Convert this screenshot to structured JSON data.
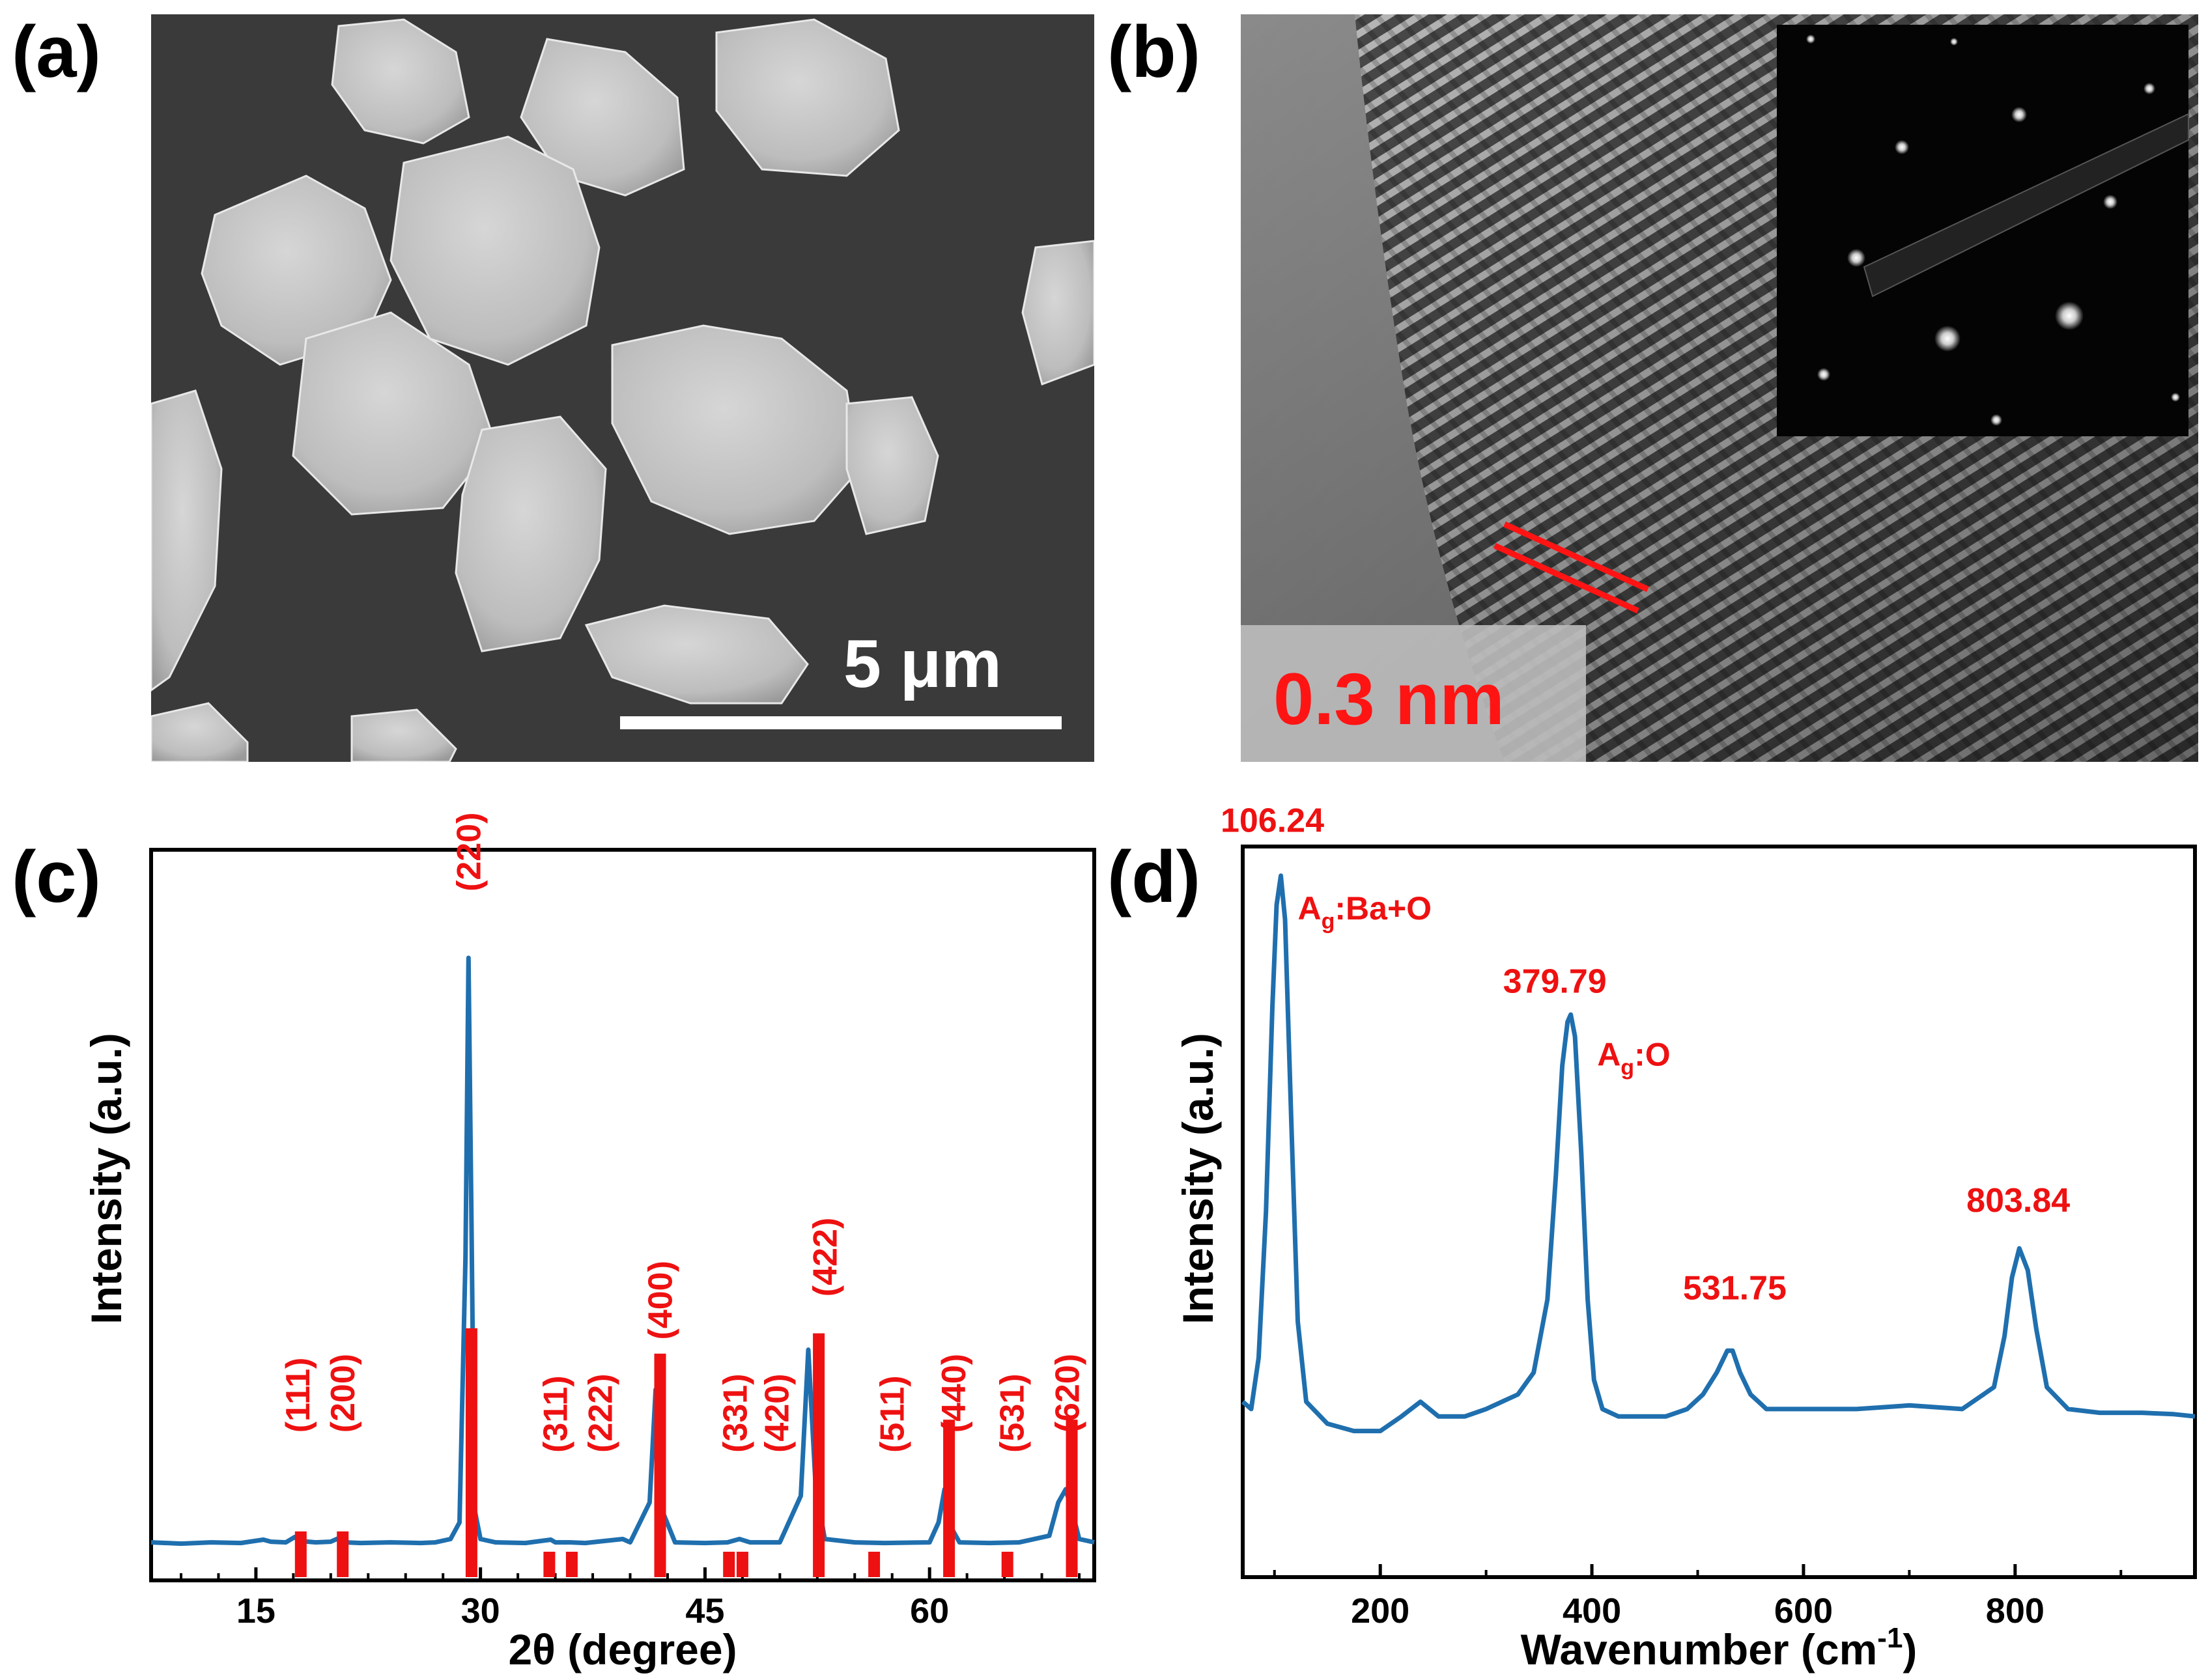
{
  "figure": {
    "panels": [
      {
        "id": "a",
        "label": "(a)",
        "scale_bar_text": "5 μm"
      },
      {
        "id": "b",
        "label": "(b)",
        "scale_bar_text": "0.3 nm"
      },
      {
        "id": "c",
        "label": "(c)"
      },
      {
        "id": "d",
        "label": "(d)"
      }
    ]
  },
  "chart_data": [
    {
      "panel": "c",
      "type": "line",
      "xlabel": "2θ (degree)",
      "ylabel": "Intensity (a.u.)",
      "xlim": [
        8,
        71
      ],
      "xticks": [
        15,
        30,
        45,
        60
      ],
      "ylim": [
        0,
        1.25
      ],
      "yticks_shown": false,
      "line_color": "#1f6fae",
      "reference_color": "#ee1111",
      "series": [
        {
          "values_note": "",
          "x": [
            8,
            10,
            12,
            14,
            15.5,
            16,
            17,
            17.6,
            18,
            19,
            20,
            20.5,
            21,
            22,
            24,
            26,
            27,
            28,
            28.6,
            29.0,
            29.2,
            29.4,
            29.6,
            30.0,
            31,
            33,
            34.7,
            35,
            36,
            37,
            39.5,
            40,
            41.3,
            41.7,
            42.1,
            43,
            45,
            46.5,
            47.3,
            48,
            50,
            51.4,
            51.9,
            52.4,
            53,
            55,
            57,
            60,
            60.6,
            61,
            61.5,
            62,
            64,
            66,
            68,
            68.6,
            69.1,
            69.6,
            70,
            71
          ],
          "y": [
            0.07,
            0.068,
            0.07,
            0.069,
            0.074,
            0.071,
            0.07,
            0.078,
            0.072,
            0.07,
            0.071,
            0.076,
            0.07,
            0.069,
            0.07,
            0.069,
            0.07,
            0.075,
            0.1,
            0.5,
            0.95,
            0.55,
            0.12,
            0.075,
            0.07,
            0.069,
            0.074,
            0.07,
            0.07,
            0.069,
            0.075,
            0.07,
            0.13,
            0.3,
            0.12,
            0.07,
            0.069,
            0.07,
            0.075,
            0.07,
            0.07,
            0.14,
            0.36,
            0.15,
            0.075,
            0.07,
            0.069,
            0.07,
            0.1,
            0.15,
            0.09,
            0.07,
            0.069,
            0.07,
            0.08,
            0.13,
            0.15,
            0.11,
            0.075,
            0.07
          ]
        }
      ],
      "reference_lines": [
        {
          "x": 18.0,
          "height": 0.09
        },
        {
          "x": 20.8,
          "height": 0.09
        },
        {
          "x": 29.4,
          "height": 0.49
        },
        {
          "x": 34.6,
          "height": 0.05
        },
        {
          "x": 36.1,
          "height": 0.05
        },
        {
          "x": 42.0,
          "height": 0.44
        },
        {
          "x": 46.6,
          "height": 0.05
        },
        {
          "x": 47.5,
          "height": 0.05
        },
        {
          "x": 52.6,
          "height": 0.48
        },
        {
          "x": 56.3,
          "height": 0.05
        },
        {
          "x": 61.3,
          "height": 0.31
        },
        {
          "x": 65.2,
          "height": 0.05
        },
        {
          "x": 69.5,
          "height": 0.31
        }
      ],
      "annotations": [
        {
          "text": "(111)",
          "x": 17.8,
          "y": 0.235
        },
        {
          "text": "(200)",
          "x": 20.8,
          "y": 0.235
        },
        {
          "text": "(220)",
          "x": 29.2,
          "y": 1.05
        },
        {
          "text": "(311)",
          "x": 35.0,
          "y": 0.205
        },
        {
          "text": "(222)",
          "x": 38.0,
          "y": 0.205
        },
        {
          "text": "(400)",
          "x": 42.0,
          "y": 0.375
        },
        {
          "text": "(331)",
          "x": 47.0,
          "y": 0.205
        },
        {
          "text": "(420)",
          "x": 49.8,
          "y": 0.205
        },
        {
          "text": "(422)",
          "x": 53.0,
          "y": 0.44
        },
        {
          "text": "(511)",
          "x": 57.5,
          "y": 0.205
        },
        {
          "text": "(440)",
          "x": 61.6,
          "y": 0.235
        },
        {
          "text": "(531)",
          "x": 65.5,
          "y": 0.205
        },
        {
          "text": "(620)",
          "x": 69.2,
          "y": 0.235
        }
      ]
    },
    {
      "panel": "d",
      "type": "line",
      "xlabel": "Wavenumber (cm",
      "xlabel_superscript": "-1",
      "xlabel_suffix": ")",
      "ylabel": "Intensity (a.u.)",
      "xlim": [
        70,
        970
      ],
      "xticks": [
        200,
        400,
        600,
        800
      ],
      "ylim": [
        0,
        1.0
      ],
      "yticks_shown": false,
      "line_color": "#1f6fae",
      "series": [
        {
          "x": [
            70,
            78,
            85,
            92,
            98,
            102,
            106,
            110,
            116,
            122,
            130,
            150,
            175,
            200,
            220,
            238,
            255,
            280,
            300,
            315,
            330,
            345,
            358,
            366,
            372,
            377,
            380,
            384,
            390,
            396,
            402,
            410,
            425,
            450,
            470,
            490,
            505,
            518,
            528,
            533,
            540,
            550,
            565,
            600,
            650,
            700,
            750,
            780,
            790,
            797,
            804,
            812,
            820,
            830,
            850,
            880,
            920,
            950,
            970
          ],
          "y": [
            0.24,
            0.23,
            0.3,
            0.5,
            0.78,
            0.92,
            0.96,
            0.9,
            0.62,
            0.35,
            0.24,
            0.21,
            0.2,
            0.2,
            0.22,
            0.24,
            0.22,
            0.22,
            0.23,
            0.24,
            0.25,
            0.28,
            0.38,
            0.55,
            0.7,
            0.76,
            0.77,
            0.74,
            0.58,
            0.38,
            0.27,
            0.23,
            0.22,
            0.22,
            0.22,
            0.23,
            0.25,
            0.28,
            0.31,
            0.31,
            0.28,
            0.25,
            0.23,
            0.23,
            0.23,
            0.235,
            0.23,
            0.26,
            0.33,
            0.41,
            0.45,
            0.42,
            0.34,
            0.26,
            0.23,
            0.225,
            0.225,
            0.223,
            0.22
          ]
        }
      ],
      "annotations": [
        {
          "text": "106.24",
          "x": 98,
          "y": 1.02
        },
        {
          "text": "379.79",
          "x": 365,
          "y": 0.8
        },
        {
          "text": "531.75",
          "x": 535,
          "y": 0.38
        },
        {
          "text": "803.84",
          "x": 803,
          "y": 0.5
        }
      ],
      "mode_labels": [
        {
          "base": "A",
          "sub": "g",
          "rest": ":Ba+O",
          "x": 122,
          "y": 0.9
        },
        {
          "base": "A",
          "sub": "g",
          "rest": ":O",
          "x": 405,
          "y": 0.7
        }
      ],
      "annotation_color": "#ee1111"
    }
  ]
}
